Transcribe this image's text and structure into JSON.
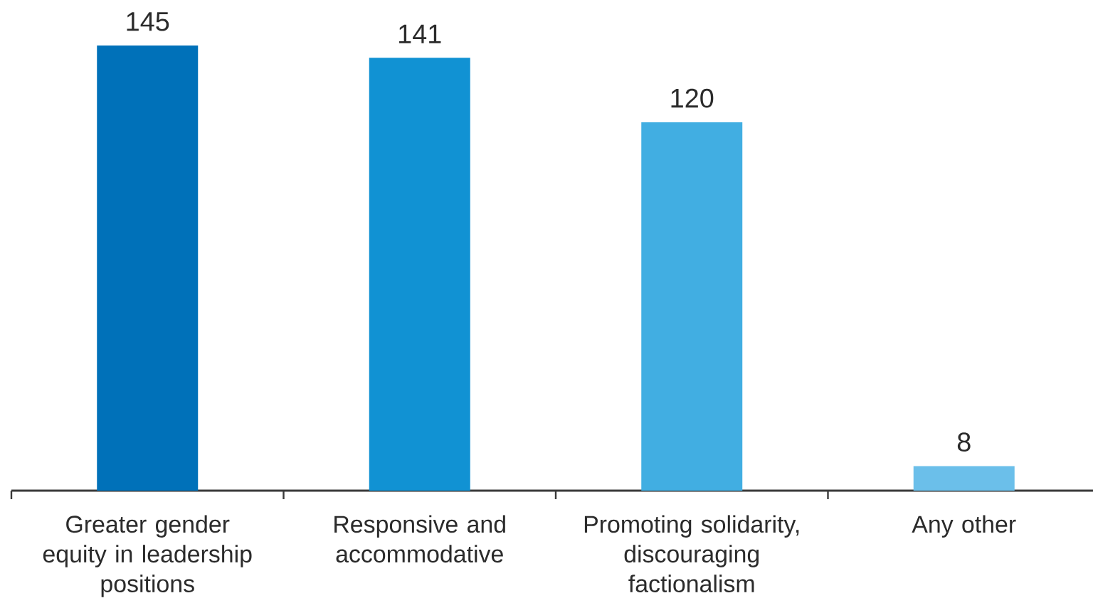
{
  "chart_data": {
    "type": "bar",
    "categories": [
      "Greater gender equity in leadership positions",
      "Responsive and accommodative",
      "Promoting solidarity, discouraging factionalism",
      "Any other"
    ],
    "values": [
      145,
      141,
      120,
      8
    ],
    "colors": [
      "#0071b9",
      "#1192d3",
      "#41aee2",
      "#6bbfea"
    ],
    "data_labels": true
  }
}
